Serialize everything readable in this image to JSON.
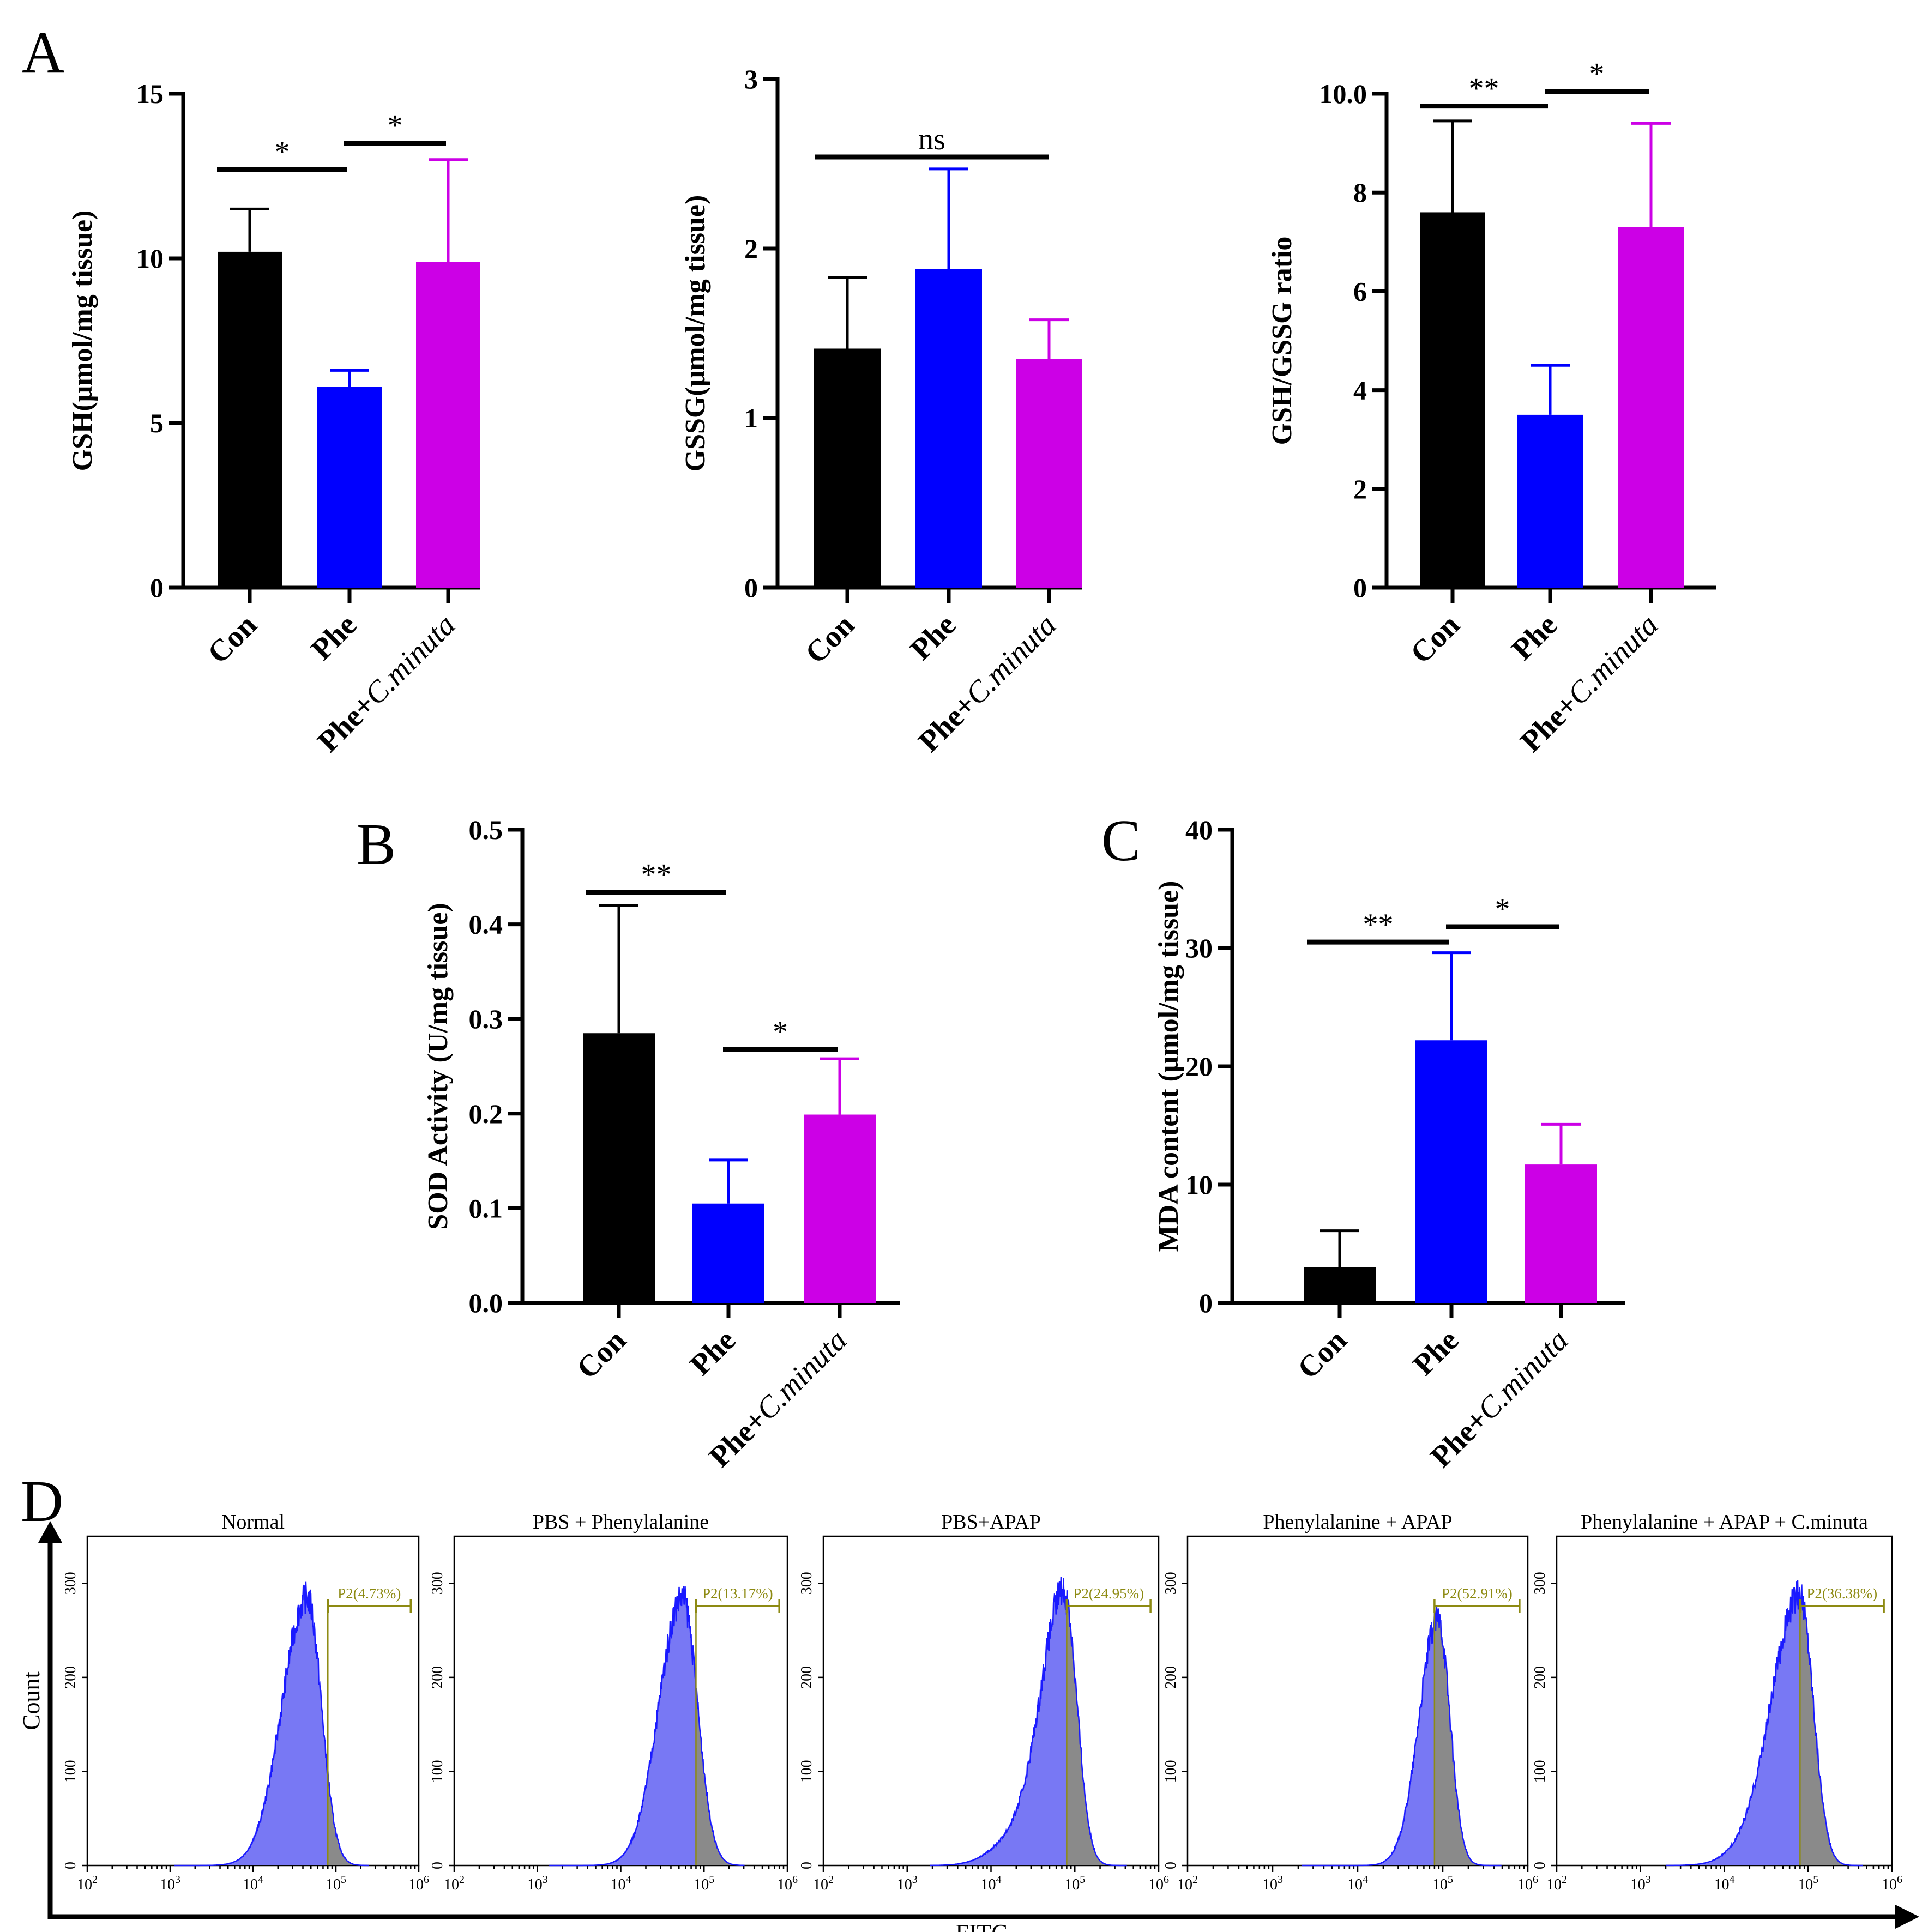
{
  "panels": {
    "A": "A",
    "B": "B",
    "C": "C",
    "D": "D"
  },
  "chart_data": [
    {
      "id": "gsh",
      "panel": "A",
      "type": "bar",
      "categories": [
        "Con",
        "Phe",
        "Phe+C.minuta"
      ],
      "values": [
        10.2,
        6.1,
        9.9
      ],
      "errors": [
        1.3,
        0.5,
        3.1
      ],
      "colors": [
        "#000000",
        "#0000ff",
        "#cc00e6"
      ],
      "ylabel": "GSH(μmol/mg tissue)",
      "ylim": [
        0,
        15
      ],
      "yticks": [
        0,
        5,
        10,
        15
      ],
      "yticklabels": [
        "0",
        "5",
        "10",
        "15"
      ],
      "significance": [
        {
          "from": 0,
          "to": 1,
          "y": 12.7,
          "label": "*"
        },
        {
          "from": 1,
          "to": 2,
          "y": 13.5,
          "label": "*"
        }
      ]
    },
    {
      "id": "gssg",
      "panel": "A",
      "type": "bar",
      "categories": [
        "Con",
        "Phe",
        "Phe+C.minuta"
      ],
      "values": [
        1.41,
        1.88,
        1.35
      ],
      "errors": [
        0.42,
        0.59,
        0.23
      ],
      "colors": [
        "#000000",
        "#0000ff",
        "#cc00e6"
      ],
      "ylabel": "GSSG(μmol/mg tissue)",
      "ylim": [
        0,
        3
      ],
      "yticks": [
        0,
        1,
        2,
        3
      ],
      "yticklabels": [
        "0",
        "1",
        "2",
        "3"
      ],
      "significance": [
        {
          "from": 0,
          "to": 2,
          "y": 2.54,
          "label": "ns"
        }
      ]
    },
    {
      "id": "ratio",
      "panel": "A",
      "type": "bar",
      "categories": [
        "Con",
        "Phe",
        "Phe+C.minuta"
      ],
      "values": [
        7.6,
        3.5,
        7.3
      ],
      "errors": [
        1.85,
        1.0,
        2.1
      ],
      "colors": [
        "#000000",
        "#0000ff",
        "#cc00e6"
      ],
      "ylabel": "GSH/GSSG ratio",
      "ylim": [
        0,
        10
      ],
      "yticks": [
        0,
        2,
        4,
        6,
        8,
        10
      ],
      "yticklabels": [
        "0",
        "2",
        "4",
        "6",
        "8",
        "10.0"
      ],
      "significance": [
        {
          "from": 0,
          "to": 1,
          "y": 9.75,
          "label": "**"
        },
        {
          "from": 1,
          "to": 2,
          "y": 10.05,
          "label": "*"
        }
      ]
    },
    {
      "id": "sod",
      "panel": "B",
      "type": "bar",
      "categories": [
        "Con",
        "Phe",
        "Phe+C.minuta"
      ],
      "values": [
        0.285,
        0.105,
        0.199
      ],
      "errors": [
        0.135,
        0.046,
        0.059
      ],
      "colors": [
        "#000000",
        "#0000ff",
        "#cc00e6"
      ],
      "ylabel": "SOD Activity (U/mg tissue)",
      "ylim": [
        0,
        0.5
      ],
      "yticks": [
        0,
        0.1,
        0.2,
        0.3,
        0.4,
        0.5
      ],
      "yticklabels": [
        "0.0",
        "0.1",
        "0.2",
        "0.3",
        "0.4",
        "0.5"
      ],
      "significance": [
        {
          "from": 0,
          "to": 1,
          "y": 0.434,
          "label": "**"
        },
        {
          "from": 1,
          "to": 2,
          "y": 0.268,
          "label": "*"
        }
      ]
    },
    {
      "id": "mda",
      "panel": "C",
      "type": "bar",
      "categories": [
        "Con",
        "Phe",
        "Phe+C.minuta"
      ],
      "values": [
        3.0,
        22.2,
        11.7
      ],
      "errors": [
        3.1,
        7.4,
        3.4
      ],
      "colors": [
        "#000000",
        "#0000ff",
        "#cc00e6"
      ],
      "ylabel": "MDA content (μmol/mg tissue)",
      "ylim": [
        0,
        40
      ],
      "yticks": [
        0,
        10,
        20,
        30,
        40
      ],
      "yticklabels": [
        "0",
        "10",
        "20",
        "30",
        "40"
      ],
      "significance": [
        {
          "from": 0,
          "to": 1,
          "y": 30.5,
          "label": "**"
        },
        {
          "from": 1,
          "to": 2,
          "y": 31.8,
          "label": "*"
        }
      ]
    },
    {
      "id": "flow",
      "panel": "D",
      "type": "area",
      "xlabel": "FITC",
      "ylabel": "Count",
      "xscale": "log",
      "xlim": [
        100,
        1000000
      ],
      "xticks": [
        100,
        1000,
        10000,
        100000,
        1000000
      ],
      "xtick_base": "10",
      "xtick_exponents": [
        "2",
        "3",
        "4",
        "5",
        "6"
      ],
      "ylim": [
        0,
        350
      ],
      "yticks": [
        0,
        100,
        200,
        300
      ],
      "yticklabels": [
        "0",
        "100",
        "200",
        "300"
      ],
      "gate": {
        "name": "P2",
        "range": [
          80000,
          800000
        ]
      },
      "fill_color": "#7878f4",
      "line_color": "#1a1aff",
      "gate_fill_color": "#8a8a8a",
      "gate_line_color": "#8d8a12",
      "histograms": [
        {
          "title": "Normal",
          "gate_label": "P2(4.73%)",
          "peak_x": 45000,
          "sigma_left": 0.3,
          "sigma_right": 0.17,
          "peak_count": 285,
          "shoulder": 0
        },
        {
          "title": "PBS + Phenylalanine",
          "gate_label": "P2(13.17%)",
          "peak_x": 55000,
          "sigma_left": 0.28,
          "sigma_right": 0.18,
          "peak_count": 285,
          "shoulder": 0
        },
        {
          "title": "PBS+APAP",
          "gate_label": "P2(24.95%)",
          "peak_x": 75000,
          "sigma_left": 0.27,
          "sigma_right": 0.15,
          "peak_count": 288,
          "shoulder": 0.45
        },
        {
          "title": "Phenylalanine + APAP",
          "gate_label": "P2(52.91%)",
          "peak_x": 88000,
          "sigma_left": 0.22,
          "sigma_right": 0.14,
          "peak_count": 262,
          "shoulder": 0
        },
        {
          "title": "Phenylalanine + APAP + C.minuta",
          "gate_label": "P2(36.38%)",
          "peak_x": 80000,
          "sigma_left": 0.33,
          "sigma_right": 0.16,
          "peak_count": 285,
          "shoulder": 0.2
        }
      ]
    }
  ]
}
